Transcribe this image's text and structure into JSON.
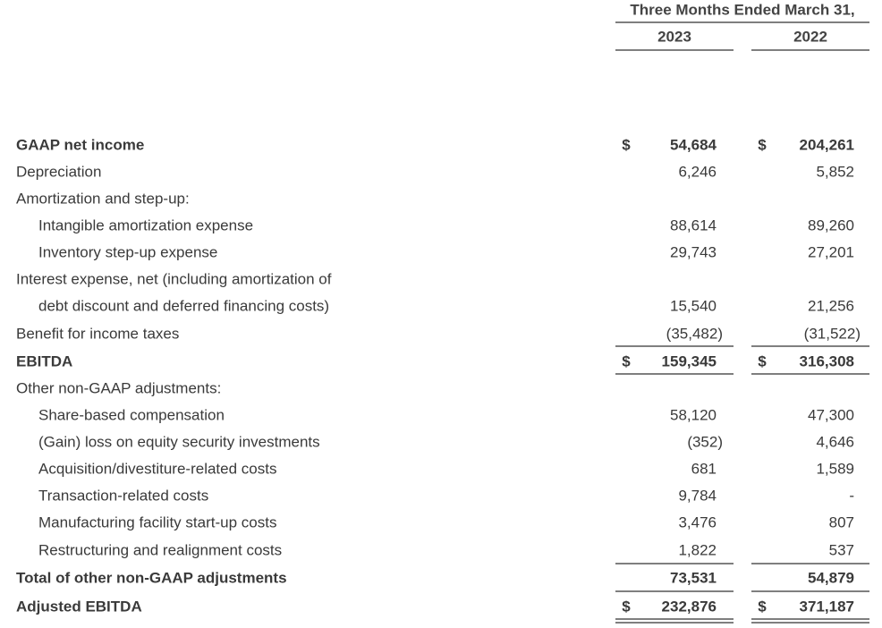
{
  "header": {
    "title": "Three Months Ended March 31,",
    "columns": [
      "2023",
      "2022"
    ]
  },
  "rows": [
    {
      "label": "GAAP net income",
      "currency": "$",
      "values": [
        "54,684",
        "204,261"
      ]
    },
    {
      "label": "Depreciation",
      "values": [
        "6,246",
        "5,852"
      ]
    },
    {
      "label": "Amortization and step-up:"
    },
    {
      "label": "Intangible amortization expense",
      "values": [
        "88,614",
        "89,260"
      ]
    },
    {
      "label": "Inventory step-up expense",
      "values": [
        "29,743",
        "27,201"
      ]
    },
    {
      "label": "Interest expense, net (including amortization of"
    },
    {
      "label": "debt discount and deferred financing costs)",
      "values": [
        "15,540",
        "21,256"
      ]
    },
    {
      "label": "Benefit for income taxes",
      "values": [
        "(35,482)",
        "(31,522)"
      ]
    },
    {
      "label": "EBITDA",
      "currency": "$",
      "values": [
        "159,345",
        "316,308"
      ]
    },
    {
      "label": "Other non-GAAP adjustments:"
    },
    {
      "label": "Share-based compensation",
      "values": [
        "58,120",
        "47,300"
      ]
    },
    {
      "label": "(Gain) loss on equity security investments",
      "values": [
        "(352)",
        "4,646"
      ]
    },
    {
      "label": "Acquisition/divestiture-related costs",
      "values": [
        "681",
        "1,589"
      ]
    },
    {
      "label": "Transaction-related costs",
      "values": [
        "9,784",
        "-"
      ]
    },
    {
      "label": "Manufacturing facility start-up costs",
      "values": [
        "3,476",
        "807"
      ]
    },
    {
      "label": "Restructuring and realignment costs",
      "values": [
        "1,822",
        "537"
      ]
    },
    {
      "label": "Total of other non-GAAP adjustments",
      "values": [
        "73,531",
        "54,879"
      ]
    },
    {
      "label": "Adjusted EBITDA",
      "currency": "$",
      "values": [
        "232,876",
        "371,187"
      ]
    }
  ]
}
